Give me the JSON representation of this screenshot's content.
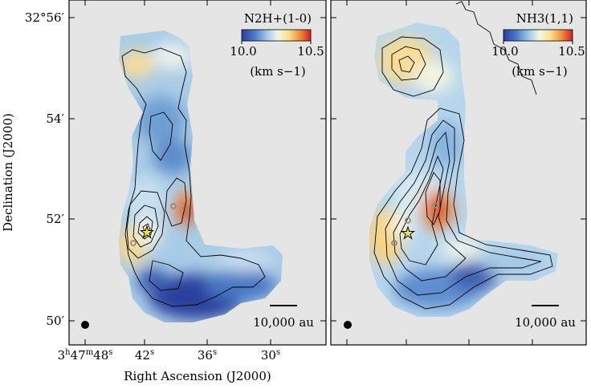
{
  "figure": {
    "y_axis_label": "Declination (J2000)",
    "x_axis_label": "Right Ascension (J2000)",
    "dec_ticks": [
      "32°56′",
      "54′",
      "52′",
      "50′"
    ],
    "ra_ticks": [
      "3h47m48s",
      "42s",
      "36s",
      "30s"
    ],
    "ra_tick_parts": [
      {
        "h": "3",
        "hs": "h",
        "m": "47",
        "ms": "m",
        "s": "48",
        "ss": "s"
      },
      {
        "s": "42",
        "ss": "s"
      },
      {
        "s": "36",
        "ss": "s"
      },
      {
        "s": "30",
        "ss": "s"
      }
    ]
  },
  "panels": [
    {
      "line": "N2H+(1-0)",
      "colorbar": {
        "min": "10.0",
        "max": "10.5",
        "unit": "(km s−1)"
      },
      "scalebar": "10,000 au"
    },
    {
      "line": "NH3(1,1)",
      "colorbar": {
        "min": "10.0",
        "max": "10.5",
        "unit": "(km s−1)"
      },
      "scalebar": "10,000 au"
    }
  ],
  "colors": {
    "background": "#e5e5e5",
    "colormap": [
      "#2a3f9d",
      "#4a78c5",
      "#9cc6e6",
      "#f3f7e8",
      "#fbe089",
      "#f0903f",
      "#cf2027"
    ],
    "contour": "#000000",
    "marker_circle": "#8c8c8c",
    "star_fill": "#f6e541"
  }
}
